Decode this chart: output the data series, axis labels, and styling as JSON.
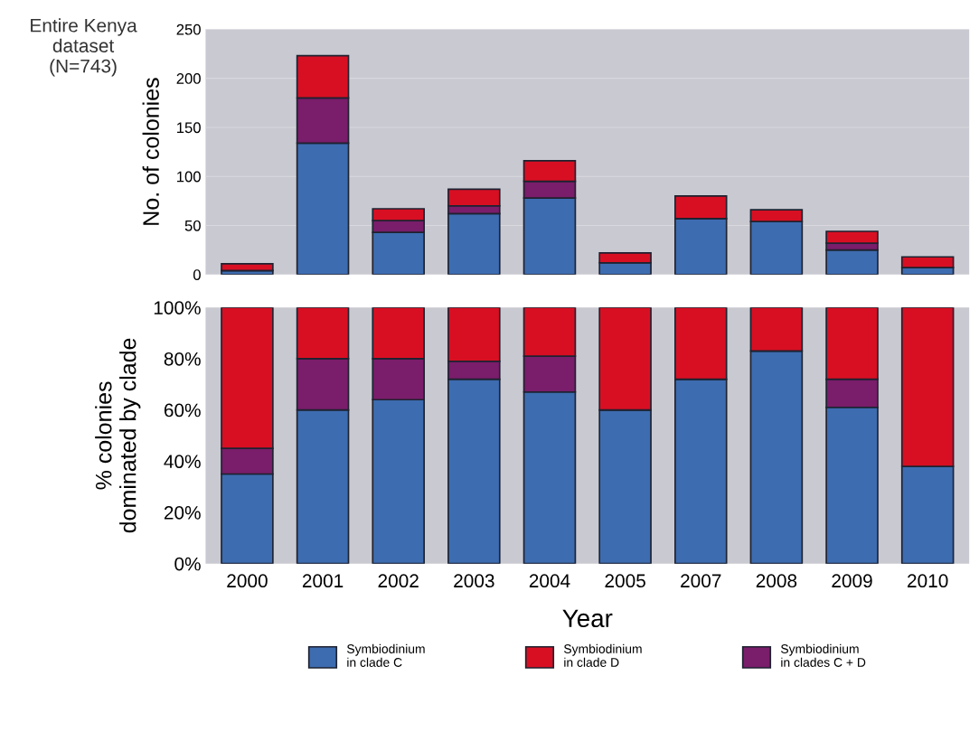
{
  "chart_data": [
    {
      "type": "bar",
      "title": "Entire Kenya\ndataset\n(N=743)",
      "ylabel": "No. of colonies",
      "stacked": true,
      "tick_labels": "y",
      "grid": "y",
      "categories": [
        "2000",
        "2001",
        "2002",
        "2003",
        "2004",
        "2005",
        "2007",
        "2008",
        "2009",
        "2010"
      ],
      "ylim": [
        0,
        250
      ],
      "yticks": [
        0,
        50,
        100,
        150,
        200,
        250
      ],
      "series": [
        {
          "color": "#3d6cb0",
          "values": [
            4,
            134,
            43,
            62,
            78,
            12,
            57,
            54,
            25,
            7
          ]
        },
        {
          "color": "#7a1d6a",
          "values": [
            0,
            46,
            12,
            8,
            17,
            0,
            0,
            0,
            7,
            0
          ]
        },
        {
          "color": "#d80f23",
          "values": [
            7,
            43,
            12,
            17,
            21,
            10,
            23,
            12,
            12,
            11
          ]
        }
      ]
    },
    {
      "type": "bar",
      "ylabel": "% colonies\ndominated by clade",
      "xlabel": "Year",
      "stacked": true,
      "legend": "bottom",
      "categories": [
        "2000",
        "2001",
        "2002",
        "2003",
        "2004",
        "2005",
        "2007",
        "2008",
        "2009",
        "2010"
      ],
      "ylim": [
        0,
        100
      ],
      "yticks": [
        {
          "value": 0,
          "label": "0%"
        },
        {
          "value": 20,
          "label": "20%"
        },
        {
          "value": 40,
          "label": "40%"
        },
        {
          "value": 60,
          "label": "60%"
        },
        {
          "value": 80,
          "label": "80%"
        },
        {
          "value": 100,
          "label": "100%"
        }
      ],
      "series": [
        {
          "name": "Symbiodinium\nin clade C",
          "color": "#3d6cb0",
          "values": [
            35,
            60,
            64,
            72,
            67,
            60,
            72,
            83,
            61,
            38
          ]
        },
        {
          "name": "Symbiodinium\nin clades C + D",
          "color": "#7a1d6a",
          "values": [
            10,
            20,
            16,
            7,
            14,
            0,
            0,
            0,
            11,
            0
          ]
        },
        {
          "name": "Symbiodinium\nin clade D",
          "color": "#d80f23",
          "values": [
            55,
            20,
            20,
            21,
            19,
            40,
            28,
            17,
            28,
            62
          ]
        }
      ]
    }
  ]
}
